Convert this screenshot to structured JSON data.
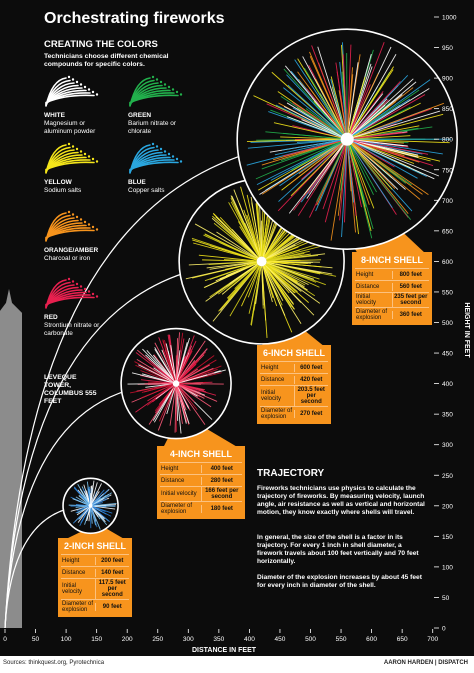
{
  "title": "Orchestrating fireworks",
  "colors_section": {
    "heading": "CREATING THE COLORS",
    "intro": "Technicians choose different chemical compounds for specific colors.",
    "items": [
      {
        "name": "WHITE",
        "compound": "Magnesium or aluminum powder",
        "color": "#ffffff"
      },
      {
        "name": "GREEN",
        "compound": "Barium nitrate or chlorate",
        "color": "#22b14c"
      },
      {
        "name": "YELLOW",
        "compound": "Sodium salts",
        "color": "#f5e61a"
      },
      {
        "name": "BLUE",
        "compound": "Copper salts",
        "color": "#2aa7e0"
      },
      {
        "name": "ORANGE/AMBER",
        "compound": "Charcoal or iron",
        "color": "#f7941d"
      },
      {
        "name": "RED",
        "compound": "Strontium nitrate or carbonate",
        "color": "#e8204f"
      }
    ]
  },
  "tower": {
    "label": "LEVEQUE TOWER, COLUMBUS 555 FEET",
    "height": 555
  },
  "shells": [
    {
      "title": "2-INCH SHELL",
      "colors": [
        "#2a7fd4",
        "#ffffff",
        "#7fc6f0"
      ],
      "rows": [
        {
          "label": "Height",
          "value": 200,
          "value_label": "200 feet"
        },
        {
          "label": "Distance",
          "value": 140,
          "value_label": "140 feet"
        },
        {
          "label": "Initial velocity",
          "value": 117.5,
          "value_label": "117.5 feet per second"
        },
        {
          "label": "Diameter of explosion",
          "value": 90,
          "value_label": "90 feet"
        }
      ]
    },
    {
      "title": "4-INCH SHELL",
      "colors": [
        "#e8204f",
        "#ff5a7a",
        "#c8102e",
        "#ffffff"
      ],
      "rows": [
        {
          "label": "Height",
          "value": 400,
          "value_label": "400 feet"
        },
        {
          "label": "Distance",
          "value": 280,
          "value_label": "280 feet"
        },
        {
          "label": "Initial velocity",
          "value": 166,
          "value_label": "166 feet per second"
        },
        {
          "label": "Diameter of explosion",
          "value": 180,
          "value_label": "180 feet"
        }
      ]
    },
    {
      "title": "6-INCH SHELL",
      "colors": [
        "#f5e61a",
        "#fff36b",
        "#d8d21a"
      ],
      "rows": [
        {
          "label": "Height",
          "value": 600,
          "value_label": "600 feet"
        },
        {
          "label": "Distance",
          "value": 420,
          "value_label": "420 feet"
        },
        {
          "label": "Initial velocity",
          "value": 203.5,
          "value_label": "203.5 feet per second"
        },
        {
          "label": "Diameter of explosion",
          "value": 270,
          "value_label": "270 feet"
        }
      ]
    },
    {
      "title": "8-INCH SHELL",
      "colors": [
        "#e8204f",
        "#2aa7e0",
        "#f5e61a",
        "#ffffff",
        "#22b14c",
        "#f7941d"
      ],
      "rows": [
        {
          "label": "Height",
          "value": 800,
          "value_label": "800 feet"
        },
        {
          "label": "Distance",
          "value": 560,
          "value_label": "560 feet"
        },
        {
          "label": "Initial velocity",
          "value": 235,
          "value_label": "235 feet per second"
        },
        {
          "label": "Diameter of explosion",
          "value": 360,
          "value_label": "360 feet"
        }
      ]
    }
  ],
  "trajectory": {
    "heading": "TRAJECTORY",
    "paragraphs": [
      "Fireworks technicians use physics to calculate the trajectory of fireworks. By measuring velocity, launch angle, air resistance as well as vertical and horizontal motion, they know exactly where shells will travel.",
      "In general, the size of the shell is a factor in its trajectory. For every 1 inch in shell diameter, a firework travels about 100 feet vertically and 70 feet horizontally.",
      "Diameter of the explosion increases by about 45 feet for every inch in diameter of the shell."
    ]
  },
  "axes": {
    "x": {
      "label": "DISTANCE IN FEET",
      "ticks": [
        0,
        50,
        100,
        150,
        200,
        250,
        300,
        350,
        400,
        450,
        500,
        550,
        600,
        650,
        700
      ]
    },
    "y": {
      "label": "HEIGHT IN FEET",
      "ticks": [
        0,
        50,
        100,
        150,
        200,
        250,
        300,
        350,
        400,
        450,
        500,
        550,
        600,
        650,
        700,
        750,
        800,
        850,
        900,
        950,
        1000
      ]
    }
  },
  "source": "Sources: thinkquest.org, Pyrotechnica",
  "credit": "AARON HARDEN | DISPATCH"
}
